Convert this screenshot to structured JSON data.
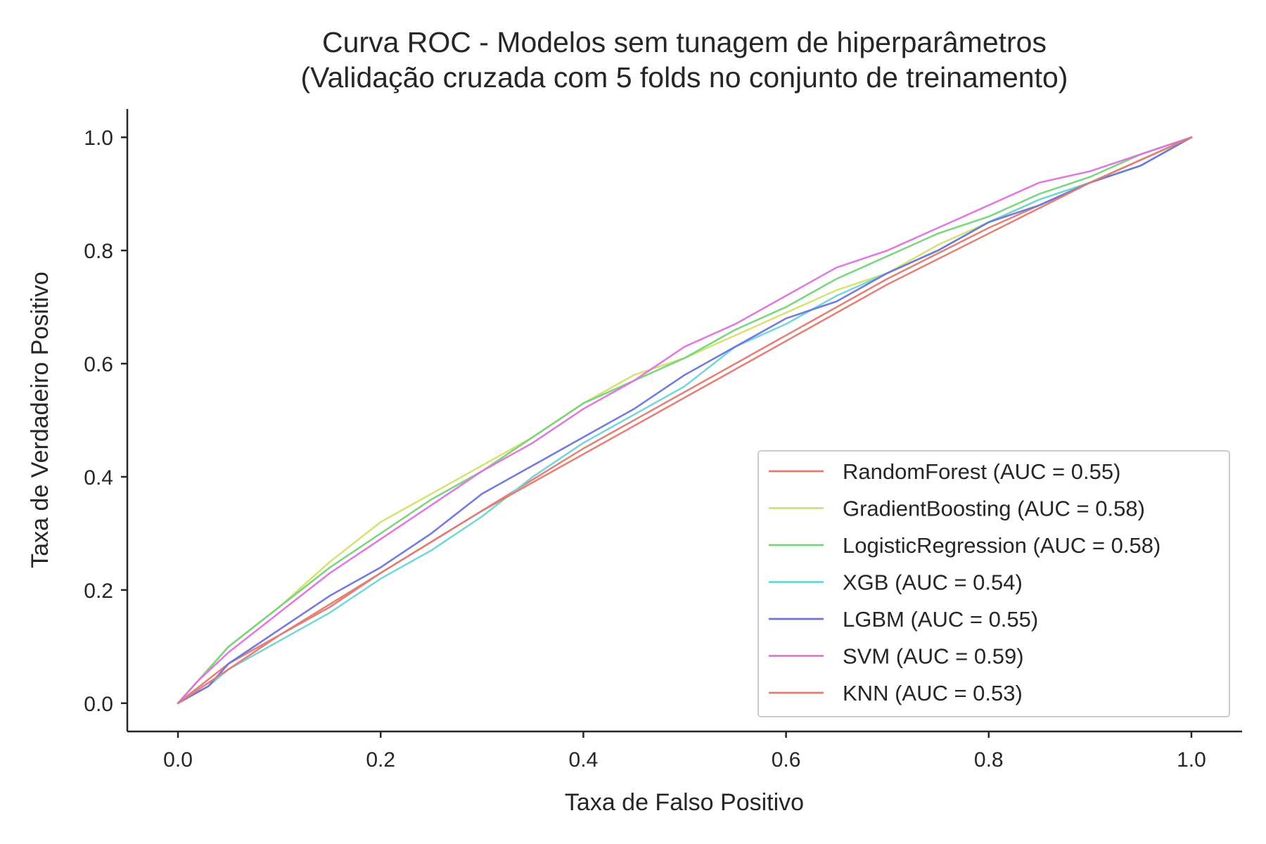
{
  "chart_data": {
    "type": "line",
    "title": "Curva ROC - Modelos sem tunagem de hiperparâmetros",
    "subtitle": "(Validação cruzada com 5 folds no conjunto de treinamento)",
    "xlabel": "Taxa de Falso Positivo",
    "ylabel": "Taxa de Verdadeiro Positivo",
    "xlim": [
      -0.05,
      1.05
    ],
    "ylim": [
      -0.05,
      1.05
    ],
    "xticks": [
      "0.0",
      "0.2",
      "0.4",
      "0.6",
      "0.8",
      "1.0"
    ],
    "yticks": [
      "0.0",
      "0.2",
      "0.4",
      "0.6",
      "0.8",
      "1.0"
    ],
    "grid": false,
    "legend_position": "lower-right",
    "series": [
      {
        "name": "RandomForest (AUC = 0.55)",
        "color": "#e07b72",
        "x": [
          0.0,
          0.05,
          0.1,
          0.15,
          0.2,
          0.3,
          0.4,
          0.5,
          0.6,
          0.7,
          0.8,
          0.9,
          1.0
        ],
        "y": [
          0.0,
          0.07,
          0.12,
          0.17,
          0.23,
          0.34,
          0.45,
          0.55,
          0.65,
          0.75,
          0.84,
          0.92,
          1.0
        ]
      },
      {
        "name": "GradientBoosting (AUC = 0.58)",
        "color": "#d6df6c",
        "x": [
          0.0,
          0.02,
          0.05,
          0.1,
          0.15,
          0.2,
          0.25,
          0.3,
          0.35,
          0.4,
          0.45,
          0.5,
          0.55,
          0.6,
          0.65,
          0.7,
          0.75,
          0.8,
          0.85,
          0.9,
          0.95,
          1.0
        ],
        "y": [
          0.0,
          0.04,
          0.1,
          0.17,
          0.25,
          0.32,
          0.37,
          0.42,
          0.47,
          0.53,
          0.58,
          0.61,
          0.65,
          0.69,
          0.73,
          0.76,
          0.81,
          0.85,
          0.89,
          0.92,
          0.96,
          1.0
        ]
      },
      {
        "name": "LogisticRegression (AUC = 0.58)",
        "color": "#75d47a",
        "x": [
          0.0,
          0.02,
          0.05,
          0.1,
          0.15,
          0.2,
          0.25,
          0.3,
          0.35,
          0.4,
          0.45,
          0.5,
          0.55,
          0.6,
          0.65,
          0.7,
          0.75,
          0.8,
          0.85,
          0.9,
          0.95,
          1.0
        ],
        "y": [
          0.0,
          0.04,
          0.1,
          0.17,
          0.24,
          0.3,
          0.36,
          0.41,
          0.47,
          0.53,
          0.57,
          0.61,
          0.66,
          0.7,
          0.75,
          0.79,
          0.83,
          0.86,
          0.9,
          0.93,
          0.97,
          1.0
        ]
      },
      {
        "name": "XGB (AUC = 0.54)",
        "color": "#6fd4d8",
        "x": [
          0.0,
          0.03,
          0.05,
          0.1,
          0.15,
          0.2,
          0.25,
          0.3,
          0.35,
          0.4,
          0.45,
          0.5,
          0.55,
          0.6,
          0.65,
          0.7,
          0.75,
          0.8,
          0.85,
          0.9,
          0.95,
          1.0
        ],
        "y": [
          0.0,
          0.03,
          0.06,
          0.11,
          0.16,
          0.22,
          0.27,
          0.33,
          0.4,
          0.46,
          0.51,
          0.56,
          0.63,
          0.67,
          0.72,
          0.76,
          0.8,
          0.85,
          0.89,
          0.92,
          0.95,
          1.0
        ]
      },
      {
        "name": "LGBM (AUC = 0.55)",
        "color": "#6b74dc",
        "x": [
          0.0,
          0.03,
          0.05,
          0.1,
          0.15,
          0.2,
          0.25,
          0.3,
          0.35,
          0.4,
          0.45,
          0.5,
          0.55,
          0.6,
          0.65,
          0.7,
          0.75,
          0.8,
          0.85,
          0.9,
          0.95,
          1.0
        ],
        "y": [
          0.0,
          0.03,
          0.07,
          0.13,
          0.19,
          0.24,
          0.3,
          0.37,
          0.42,
          0.47,
          0.52,
          0.58,
          0.63,
          0.68,
          0.71,
          0.76,
          0.8,
          0.85,
          0.88,
          0.92,
          0.95,
          1.0
        ]
      },
      {
        "name": "SVM (AUC = 0.59)",
        "color": "#df72df",
        "x": [
          0.0,
          0.02,
          0.05,
          0.1,
          0.15,
          0.2,
          0.25,
          0.3,
          0.35,
          0.4,
          0.45,
          0.5,
          0.55,
          0.6,
          0.65,
          0.7,
          0.75,
          0.8,
          0.85,
          0.9,
          0.95,
          1.0
        ],
        "y": [
          0.0,
          0.04,
          0.09,
          0.16,
          0.23,
          0.29,
          0.35,
          0.41,
          0.46,
          0.52,
          0.57,
          0.63,
          0.67,
          0.72,
          0.77,
          0.8,
          0.84,
          0.88,
          0.92,
          0.94,
          0.97,
          1.0
        ]
      },
      {
        "name": "KNN (AUC = 0.53)",
        "color": "#e07b72",
        "x": [
          0.0,
          0.1,
          0.2,
          0.3,
          0.4,
          0.5,
          0.6,
          0.7,
          0.8,
          0.9,
          1.0
        ],
        "y": [
          0.0,
          0.12,
          0.23,
          0.34,
          0.44,
          0.54,
          0.64,
          0.74,
          0.83,
          0.92,
          1.0
        ]
      }
    ]
  }
}
